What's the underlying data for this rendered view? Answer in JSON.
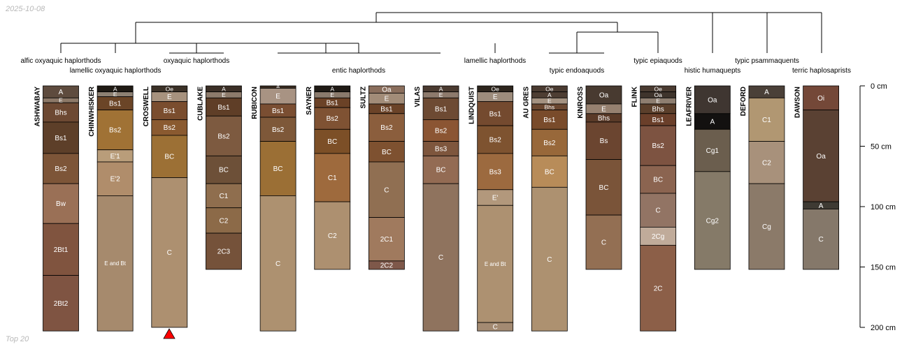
{
  "date_label": "2025-10-08",
  "footer_label": "Top 20",
  "depth_axis": {
    "unit_label": "cm",
    "ticks": [
      {
        "value": 0,
        "label": "0 cm"
      },
      {
        "value": 50,
        "label": "50 cm"
      },
      {
        "value": 100,
        "label": "100 cm"
      },
      {
        "value": 150,
        "label": "150 cm"
      },
      {
        "value": 200,
        "label": "200 cm"
      }
    ]
  },
  "taxa_labels": [
    "alfic oxyaquic haplorthods",
    "lamellic oxyaquic haplorthods",
    "oxyaquic haplorthods",
    "entic haplorthods",
    "lamellic haplorthods",
    "typic endoaquods",
    "typic epiaquods",
    "histic humaquepts",
    "typic psammaquents",
    "terric haplosaprists"
  ],
  "profiles": [
    {
      "name": "ASHWABAY",
      "horizons": [
        {
          "name": "A",
          "top": 0,
          "bottom": 10,
          "color": "#5e4b3e"
        },
        {
          "name": "E",
          "top": 10,
          "bottom": 14,
          "color": "#8c7868"
        },
        {
          "name": "Bhs",
          "top": 14,
          "bottom": 30,
          "color": "#6d4933"
        },
        {
          "name": "Bs1",
          "top": 30,
          "bottom": 56,
          "color": "#5d3f29"
        },
        {
          "name": "Bs2",
          "top": 56,
          "bottom": 81,
          "color": "#7d5538"
        },
        {
          "name": "Bw",
          "top": 81,
          "bottom": 114,
          "color": "#9a7056"
        },
        {
          "name": "2Bt1",
          "top": 114,
          "bottom": 157,
          "color": "#80543f"
        },
        {
          "name": "2Bt2",
          "top": 157,
          "bottom": 203,
          "color": "#7f5442"
        }
      ]
    },
    {
      "name": "CHINWHISKER",
      "horizons": [
        {
          "name": "A",
          "top": 0,
          "bottom": 5,
          "color": "#1f1a14"
        },
        {
          "name": "E",
          "top": 5,
          "bottom": 9,
          "color": "#8d8173"
        },
        {
          "name": "Bs1",
          "top": 9,
          "bottom": 20,
          "color": "#6b4527"
        },
        {
          "name": "Bs2",
          "top": 20,
          "bottom": 53,
          "color": "#a07235"
        },
        {
          "name": "E'1",
          "top": 53,
          "bottom": 63,
          "color": "#b99d7a"
        },
        {
          "name": "E'2",
          "top": 63,
          "bottom": 91,
          "color": "#b08d6b"
        },
        {
          "name": "E and Bt",
          "top": 91,
          "bottom": 203,
          "color": "#a68a6d"
        }
      ]
    },
    {
      "name": "CROSWELL",
      "horizons": [
        {
          "name": "Oe",
          "top": 0,
          "bottom": 5,
          "color": "#3b3127"
        },
        {
          "name": "E",
          "top": 5,
          "bottom": 13,
          "color": "#a7927e"
        },
        {
          "name": "Bs1",
          "top": 13,
          "bottom": 28,
          "color": "#7a4d2e"
        },
        {
          "name": "Bs2",
          "top": 28,
          "bottom": 41,
          "color": "#8a5a30"
        },
        {
          "name": "BC",
          "top": 41,
          "bottom": 76,
          "color": "#9c7035"
        },
        {
          "name": "C",
          "top": 76,
          "bottom": 200,
          "color": "#ad9070"
        }
      ]
    },
    {
      "name": "CUBLAKE",
      "horizons": [
        {
          "name": "A",
          "top": 0,
          "bottom": 5,
          "color": "#3b2f26"
        },
        {
          "name": "E",
          "top": 5,
          "bottom": 10,
          "color": "#8d7b6b"
        },
        {
          "name": "Bs1",
          "top": 10,
          "bottom": 25,
          "color": "#5f3e27"
        },
        {
          "name": "Bs2",
          "top": 25,
          "bottom": 58,
          "color": "#7d5a40"
        },
        {
          "name": "BC",
          "top": 58,
          "bottom": 81,
          "color": "#6d5038"
        },
        {
          "name": "C1",
          "top": 81,
          "bottom": 101,
          "color": "#8f6e4e"
        },
        {
          "name": "C2",
          "top": 101,
          "bottom": 122,
          "color": "#8c6a48"
        },
        {
          "name": "2C3",
          "top": 122,
          "bottom": 152,
          "color": "#75523a"
        }
      ]
    },
    {
      "name": "RUBICON",
      "horizons": [
        {
          "name": "A",
          "top": 0,
          "bottom": 2,
          "color": "#3a2b20"
        },
        {
          "name": "E",
          "top": 2,
          "bottom": 15,
          "color": "#a89383"
        },
        {
          "name": "Bs1",
          "top": 15,
          "bottom": 26,
          "color": "#7a4e32"
        },
        {
          "name": "Bs2",
          "top": 26,
          "bottom": 46,
          "color": "#7e5839"
        },
        {
          "name": "BC",
          "top": 46,
          "bottom": 91,
          "color": "#9b6f35"
        },
        {
          "name": "C",
          "top": 91,
          "bottom": 203,
          "color": "#ad9170"
        }
      ]
    },
    {
      "name": "SAYNER",
      "horizons": [
        {
          "name": "A",
          "top": 0,
          "bottom": 5,
          "color": "#1f1a15"
        },
        {
          "name": "E",
          "top": 5,
          "bottom": 10,
          "color": "#8a7a6c"
        },
        {
          "name": "Bs1",
          "top": 10,
          "bottom": 18,
          "color": "#6b4227"
        },
        {
          "name": "Bs2",
          "top": 18,
          "bottom": 36,
          "color": "#7f5233"
        },
        {
          "name": "BC",
          "top": 36,
          "bottom": 56,
          "color": "#7c4f27"
        },
        {
          "name": "C1",
          "top": 56,
          "bottom": 96,
          "color": "#9e6a3d"
        },
        {
          "name": "C2",
          "top": 96,
          "bottom": 152,
          "color": "#ad9070"
        }
      ]
    },
    {
      "name": "SULTZ",
      "horizons": [
        {
          "name": "Oa",
          "top": 0,
          "bottom": 6,
          "color": "#8a6e5c"
        },
        {
          "name": "E",
          "top": 6,
          "bottom": 15,
          "color": "#a28c78"
        },
        {
          "name": "Bs1",
          "top": 15,
          "bottom": 23,
          "color": "#6b4328"
        },
        {
          "name": "Bs2",
          "top": 23,
          "bottom": 46,
          "color": "#8b5e3d"
        },
        {
          "name": "BC",
          "top": 46,
          "bottom": 63,
          "color": "#7e5130"
        },
        {
          "name": "C",
          "top": 63,
          "bottom": 109,
          "color": "#906f52"
        },
        {
          "name": "2C1",
          "top": 109,
          "bottom": 145,
          "color": "#a07a5e"
        },
        {
          "name": "2C2",
          "top": 145,
          "bottom": 152,
          "color": "#7e584a"
        }
      ]
    },
    {
      "name": "VILAS",
      "horizons": [
        {
          "name": "A",
          "top": 0,
          "bottom": 5,
          "color": "#4a3a30"
        },
        {
          "name": "E",
          "top": 5,
          "bottom": 10,
          "color": "#8d7a6c"
        },
        {
          "name": "Bs1",
          "top": 10,
          "bottom": 28,
          "color": "#6d4a33"
        },
        {
          "name": "Bs2",
          "top": 28,
          "bottom": 46,
          "color": "#8b5533"
        },
        {
          "name": "Bs3",
          "top": 46,
          "bottom": 58,
          "color": "#7e563d"
        },
        {
          "name": "BC",
          "top": 58,
          "bottom": 81,
          "color": "#936b53"
        },
        {
          "name": "C",
          "top": 81,
          "bottom": 203,
          "color": "#8f735e"
        }
      ]
    },
    {
      "name": "LINDQUIST",
      "horizons": [
        {
          "name": "Oe",
          "top": 0,
          "bottom": 5,
          "color": "#2d251d"
        },
        {
          "name": "E",
          "top": 5,
          "bottom": 13,
          "color": "#9d8c7c"
        },
        {
          "name": "Bs1",
          "top": 13,
          "bottom": 33,
          "color": "#744a2f"
        },
        {
          "name": "Bs2",
          "top": 33,
          "bottom": 56,
          "color": "#7e5330"
        },
        {
          "name": "Bs3",
          "top": 56,
          "bottom": 86,
          "color": "#9c6a3f"
        },
        {
          "name": "E'",
          "top": 86,
          "bottom": 99,
          "color": "#b2987c"
        },
        {
          "name": "E and Bt",
          "top": 99,
          "bottom": 196,
          "color": "#ad9171"
        },
        {
          "name": "C",
          "top": 196,
          "bottom": 203,
          "color": "#a38a72"
        }
      ]
    },
    {
      "name": "AU GRES",
      "horizons": [
        {
          "name": "Oe",
          "top": 0,
          "bottom": 5,
          "color": "#4a3b31"
        },
        {
          "name": "A",
          "top": 5,
          "bottom": 10,
          "color": "#4e3e33"
        },
        {
          "name": "E",
          "top": 10,
          "bottom": 15,
          "color": "#a49281"
        },
        {
          "name": "Bhs",
          "top": 15,
          "bottom": 20,
          "color": "#6a4730"
        },
        {
          "name": "Bs1",
          "top": 20,
          "bottom": 36,
          "color": "#794b2b"
        },
        {
          "name": "Bs2",
          "top": 36,
          "bottom": 58,
          "color": "#98683a"
        },
        {
          "name": "BC",
          "top": 58,
          "bottom": 84,
          "color": "#b88c59"
        },
        {
          "name": "C",
          "top": 84,
          "bottom": 203,
          "color": "#ad9170"
        }
      ]
    },
    {
      "name": "KINROSS",
      "horizons": [
        {
          "name": "Oa",
          "top": 0,
          "bottom": 15,
          "color": "#483a30"
        },
        {
          "name": "E",
          "top": 15,
          "bottom": 23,
          "color": "#968170"
        },
        {
          "name": "Bhs",
          "top": 23,
          "bottom": 30,
          "color": "#5a3a28"
        },
        {
          "name": "Bs",
          "top": 30,
          "bottom": 61,
          "color": "#6b4530"
        },
        {
          "name": "BC",
          "top": 61,
          "bottom": 107,
          "color": "#7a5439"
        },
        {
          "name": "C",
          "top": 107,
          "bottom": 152,
          "color": "#936f53"
        }
      ]
    },
    {
      "name": "FLINK",
      "horizons": [
        {
          "name": "Oe",
          "top": 0,
          "bottom": 5,
          "color": "#4a3b31"
        },
        {
          "name": "Oa",
          "top": 5,
          "bottom": 10,
          "color": "#3f342c"
        },
        {
          "name": "E",
          "top": 10,
          "bottom": 15,
          "color": "#8e7e70"
        },
        {
          "name": "Bhs",
          "top": 15,
          "bottom": 23,
          "color": "#5b3f2b"
        },
        {
          "name": "Bs1",
          "top": 23,
          "bottom": 33,
          "color": "#6a3f2a"
        },
        {
          "name": "Bs2",
          "top": 33,
          "bottom": 66,
          "color": "#7d5341"
        },
        {
          "name": "BC",
          "top": 66,
          "bottom": 89,
          "color": "#8b6450"
        },
        {
          "name": "C",
          "top": 89,
          "bottom": 117,
          "color": "#927464"
        },
        {
          "name": "2Cg",
          "top": 117,
          "bottom": 132,
          "color": "#c0ab9a"
        },
        {
          "name": "2C",
          "top": 132,
          "bottom": 203,
          "color": "#8c5f48"
        }
      ]
    },
    {
      "name": "LEAFRIVER",
      "horizons": [
        {
          "name": "Oa",
          "top": 0,
          "bottom": 23,
          "color": "#3f3631"
        },
        {
          "name": "A",
          "top": 23,
          "bottom": 36,
          "color": "#131110"
        },
        {
          "name": "Cg1",
          "top": 36,
          "bottom": 71,
          "color": "#6b5e4e"
        },
        {
          "name": "Cg2",
          "top": 71,
          "bottom": 152,
          "color": "#857a68"
        }
      ]
    },
    {
      "name": "DEFORD",
      "horizons": [
        {
          "name": "A",
          "top": 0,
          "bottom": 10,
          "color": "#4a4038"
        },
        {
          "name": "C1",
          "top": 10,
          "bottom": 46,
          "color": "#b19772"
        },
        {
          "name": "C2",
          "top": 46,
          "bottom": 81,
          "color": "#a8917b"
        },
        {
          "name": "Cg",
          "top": 81,
          "bottom": 152,
          "color": "#8b7a69"
        }
      ]
    },
    {
      "name": "DAWSON",
      "horizons": [
        {
          "name": "Oi",
          "top": 0,
          "bottom": 20,
          "color": "#744838"
        },
        {
          "name": "Oa",
          "top": 20,
          "bottom": 96,
          "color": "#5a4133"
        },
        {
          "name": "A",
          "top": 96,
          "bottom": 102,
          "color": "#3e3a33"
        },
        {
          "name": "C",
          "top": 102,
          "bottom": 152,
          "color": "#85786a"
        }
      ]
    }
  ]
}
